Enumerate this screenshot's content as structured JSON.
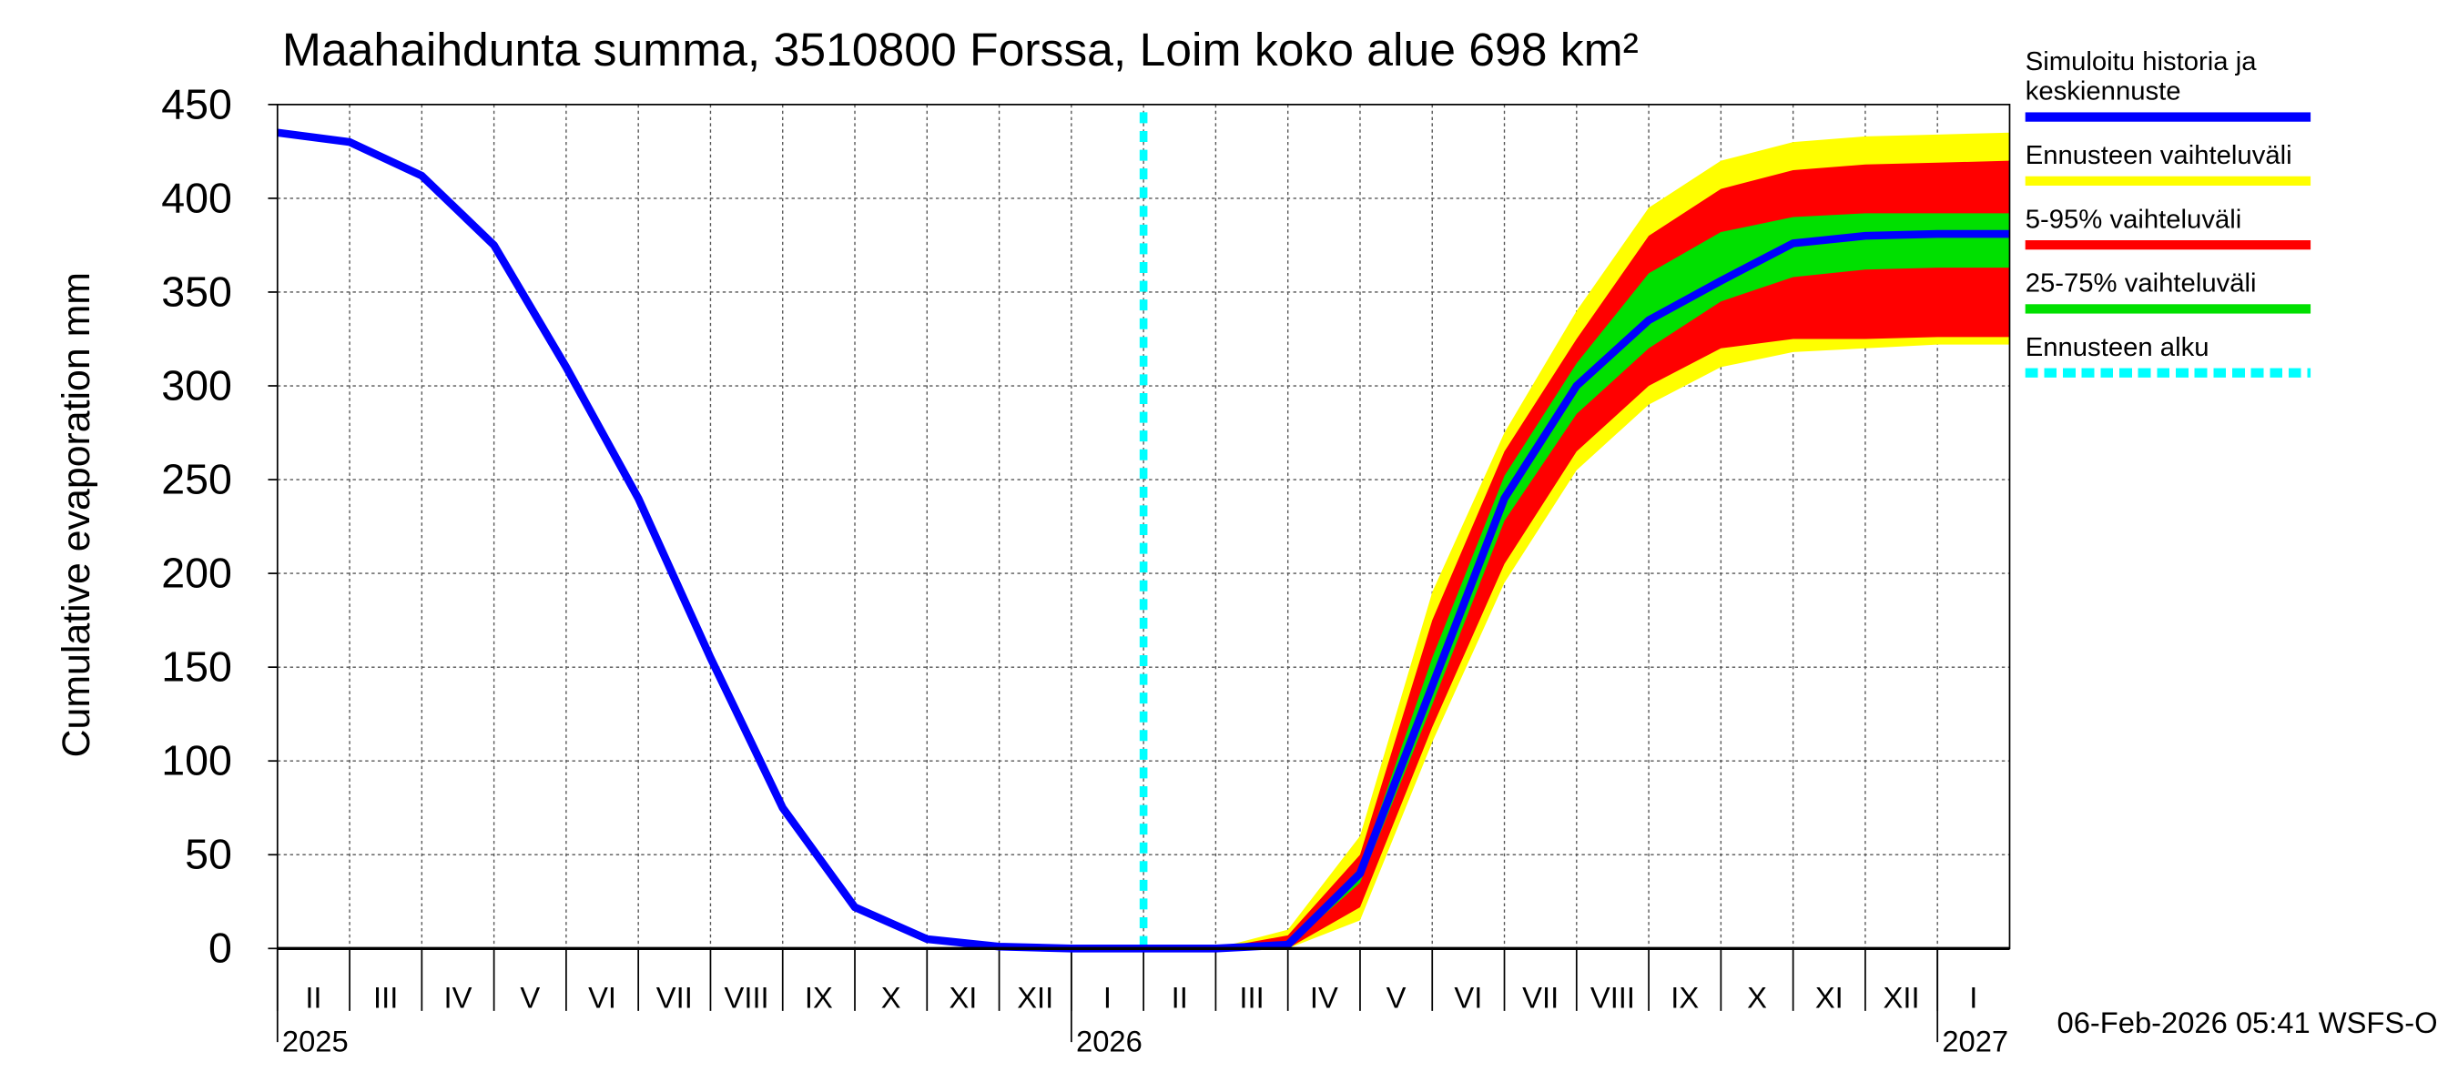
{
  "chart_data": {
    "type": "line",
    "title": "Maahaihdunta summa, 3510800 Forssa, Loim koko alue 698 km²",
    "y_label": "Cumulative evaporation   mm",
    "x": [
      "2025-02",
      "2025-03",
      "2025-04",
      "2025-05",
      "2025-06",
      "2025-07",
      "2025-08",
      "2025-09",
      "2025-10",
      "2025-11",
      "2025-12",
      "2026-01",
      "2026-02",
      "2026-03",
      "2026-04",
      "2026-05",
      "2026-06",
      "2026-07",
      "2026-08",
      "2026-09",
      "2026-10",
      "2026-11",
      "2026-12",
      "2027-01",
      "2027-02"
    ],
    "xlim": [
      "2025-02",
      "2027-02"
    ],
    "ylim": [
      0,
      450
    ],
    "yticks": [
      0,
      50,
      100,
      150,
      200,
      250,
      300,
      350,
      400,
      450
    ],
    "grid": true,
    "month_labels": [
      "II",
      "III",
      "IV",
      "V",
      "VI",
      "VII",
      "VIII",
      "IX",
      "X",
      "XI",
      "XII",
      "I",
      "II",
      "III",
      "IV",
      "V",
      "VI",
      "VII",
      "VIII",
      "IX",
      "X",
      "XI",
      "XII",
      "I"
    ],
    "year_labels": [
      {
        "x": "2025-02",
        "label": "2025"
      },
      {
        "x": "2026-01",
        "label": "2026"
      },
      {
        "x": "2027-01",
        "label": "2027"
      }
    ],
    "bands": [
      {
        "name": "Ennusteen vaihteluväli",
        "color": "#ffff00",
        "upper": [
          null,
          null,
          null,
          null,
          null,
          null,
          null,
          null,
          null,
          null,
          null,
          null,
          0,
          0,
          10,
          60,
          190,
          275,
          340,
          395,
          420,
          430,
          433,
          434,
          435
        ],
        "lower": [
          null,
          null,
          null,
          null,
          null,
          null,
          null,
          null,
          null,
          null,
          null,
          null,
          0,
          0,
          0,
          15,
          110,
          195,
          255,
          290,
          310,
          318,
          320,
          322,
          322
        ]
      },
      {
        "name": "5-95% vaihteluväli",
        "color": "#ff0000",
        "upper": [
          null,
          null,
          null,
          null,
          null,
          null,
          null,
          null,
          null,
          null,
          null,
          null,
          0,
          0,
          7,
          50,
          175,
          265,
          325,
          380,
          405,
          415,
          418,
          419,
          420
        ],
        "lower": [
          null,
          null,
          null,
          null,
          null,
          null,
          null,
          null,
          null,
          null,
          null,
          null,
          0,
          0,
          0,
          22,
          118,
          205,
          265,
          300,
          320,
          325,
          325,
          326,
          326
        ]
      },
      {
        "name": "25-75% vaihteluväli",
        "color": "#00e000",
        "upper": [
          null,
          null,
          null,
          null,
          null,
          null,
          null,
          null,
          null,
          null,
          null,
          null,
          0,
          0,
          4,
          43,
          155,
          252,
          312,
          360,
          382,
          390,
          392,
          392,
          392
        ],
        "lower": [
          null,
          null,
          null,
          null,
          null,
          null,
          null,
          null,
          null,
          null,
          null,
          null,
          0,
          0,
          1,
          35,
          130,
          228,
          285,
          320,
          345,
          358,
          362,
          363,
          363
        ]
      }
    ],
    "series": [
      {
        "name": "Simuloitu historia ja keskiennuste",
        "color": "#0000ff",
        "values": [
          435,
          430,
          412,
          375,
          310,
          240,
          155,
          75,
          22,
          5,
          1,
          0,
          0,
          0,
          2,
          40,
          140,
          240,
          300,
          335,
          356,
          376,
          380,
          381,
          381
        ]
      }
    ],
    "forecast_start": {
      "name": "Ennusteen alku",
      "x": "2026-02",
      "color": "#00ffff"
    },
    "footer": "06-Feb-2026 05:41 WSFS-O"
  }
}
